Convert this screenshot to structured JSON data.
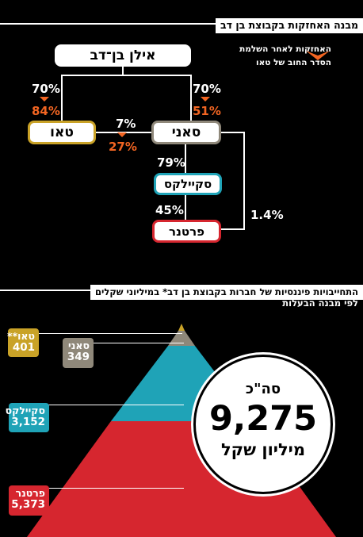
{
  "section1": {
    "title": "מבנה האחזקות בקבוצת בן דב"
  },
  "legend": {
    "line1": "האחזקות לאחר השלמת",
    "line2": "הסדר החוב של טאו"
  },
  "companies": {
    "owner": "אילן בן־דב",
    "tao": "טאו",
    "suny": "סאני",
    "scailex": "סקיילקס",
    "partner": "פרטנר"
  },
  "holdings": {
    "owner_tao_before": "70%",
    "owner_tao_after": "84%",
    "owner_suny_before": "70%",
    "owner_suny_after": "51%",
    "tao_suny_before": "7%",
    "tao_suny_after": "27%",
    "suny_scailex": "79%",
    "scailex_partner": "45%",
    "suny_partner": "1.4%"
  },
  "section2": {
    "title": "התחייבויות פיננסיות של חברות בקבוצת בן דב* במיליוני שקלים",
    "subtitle": "לפי מבנה הבעלות"
  },
  "liabilities": [
    {
      "name": "טאו**",
      "value": "401",
      "color": "#c9a227"
    },
    {
      "name": "סאני",
      "value": "349",
      "color": "#8f887a"
    },
    {
      "name": "סקיילקס",
      "value": "3,152",
      "color": "#1fa3b7"
    },
    {
      "name": "פרטנר",
      "value": "5,373",
      "color": "#d6262f"
    }
  ],
  "total": {
    "label": "סה\"כ",
    "value": "9,275",
    "unit": "מיליון שקל"
  },
  "colors": {
    "accent": "#f26522",
    "tao": "#c9a227",
    "scailex": "#1fa3b7",
    "partner": "#d6262f",
    "suny_border": "#8f887a"
  }
}
